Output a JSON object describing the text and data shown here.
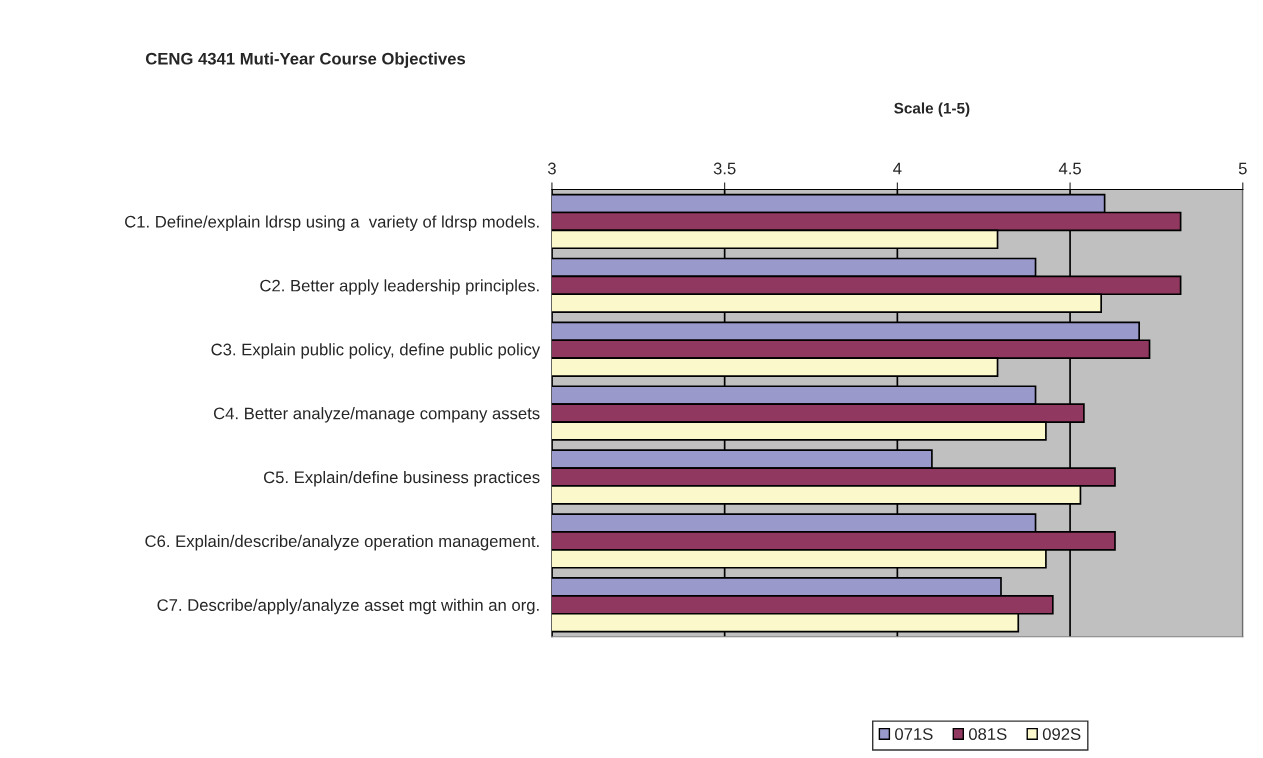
{
  "chart_data": {
    "type": "bar",
    "orientation": "horizontal",
    "title": "CENG 4341 Muti-Year Course Objectives",
    "xlabel": "Scale (1-5)",
    "categories": [
      "C1. Define/explain ldrsp using a  variety of ldrsp models.",
      "C2. Better apply leadership principles.",
      "C3. Explain public policy, define public policy",
      "C4. Better analyze/manage company assets",
      "C5. Explain/define business practices",
      "C6. Explain/describe/analyze operation management.",
      "C7. Describe/apply/analyze asset mgt within an org."
    ],
    "series": [
      {
        "name": "071S",
        "color": "#9999cc",
        "values": [
          4.6,
          4.4,
          4.7,
          4.4,
          4.1,
          4.4,
          4.3
        ]
      },
      {
        "name": "081S",
        "color": "#903860",
        "values": [
          4.82,
          4.82,
          4.73,
          4.54,
          4.63,
          4.63,
          4.45
        ]
      },
      {
        "name": "092S",
        "color": "#fbf8cc",
        "values": [
          4.29,
          4.59,
          4.29,
          4.43,
          4.53,
          4.43,
          4.35
        ]
      }
    ],
    "xlim": [
      3,
      5
    ],
    "xticks": [
      3,
      3.5,
      4,
      4.5,
      5
    ],
    "grid": "x",
    "legend": "bottom"
  }
}
